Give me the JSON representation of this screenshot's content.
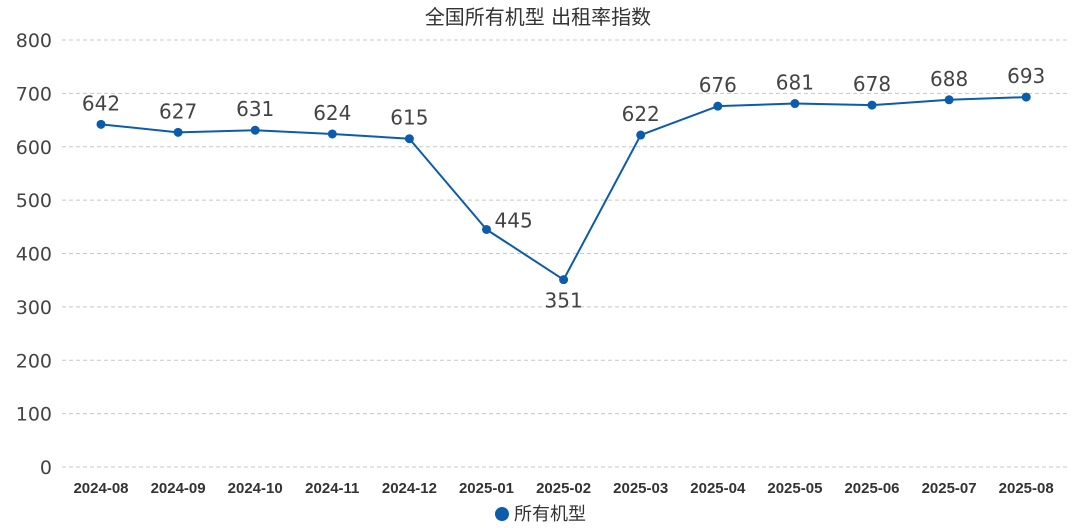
{
  "chart_data": {
    "type": "line",
    "title": "全国所有机型 出租率指数",
    "xlabel": "",
    "ylabel": "",
    "categories": [
      "2024-08",
      "2024-09",
      "2024-10",
      "2024-11",
      "2024-12",
      "2025-01",
      "2025-02",
      "2025-03",
      "2025-04",
      "2025-05",
      "2025-06",
      "2025-07",
      "2025-08"
    ],
    "series": [
      {
        "name": "所有机型",
        "values": [
          642,
          627,
          631,
          624,
          615,
          445,
          351,
          622,
          676,
          681,
          678,
          688,
          693
        ],
        "color": "#0b5cad"
      }
    ],
    "ylim": [
      0,
      800
    ],
    "yticks": [
      0,
      100,
      200,
      300,
      400,
      500,
      600,
      700,
      800
    ],
    "grid": true,
    "legend_position": "bottom-center",
    "data_labels": true
  }
}
